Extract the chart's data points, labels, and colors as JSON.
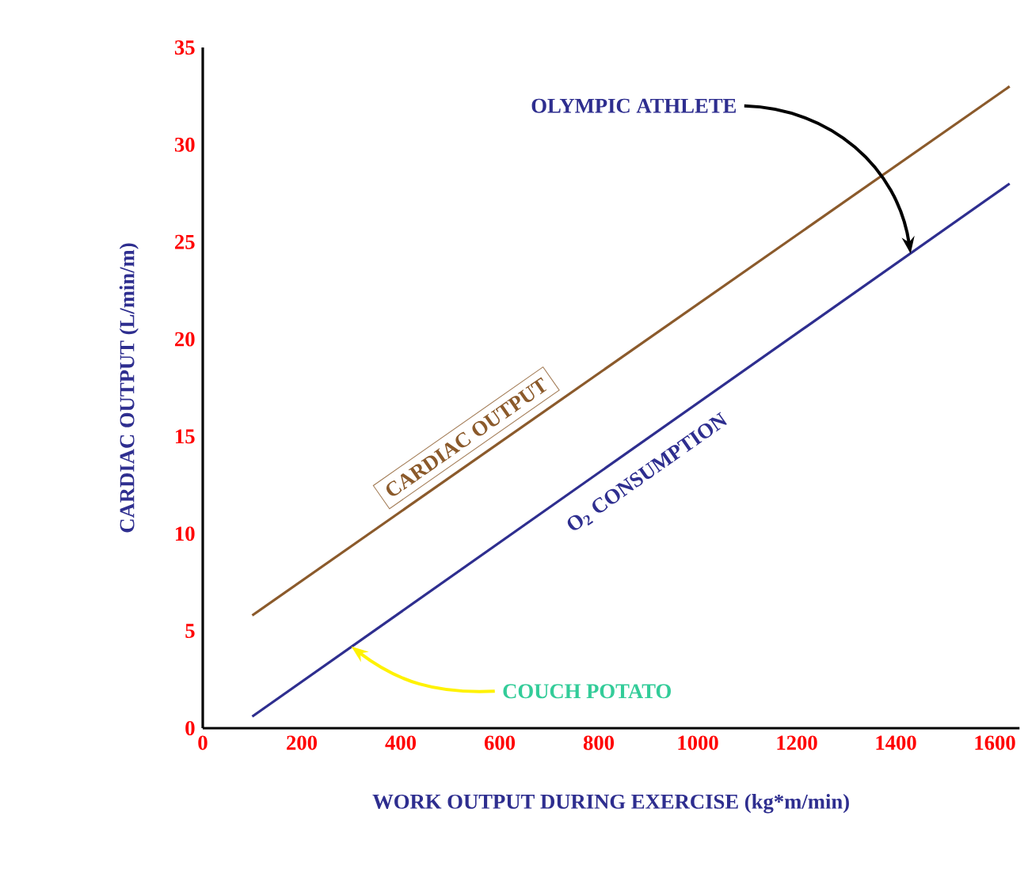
{
  "chart_data": {
    "type": "line",
    "xlabel": "WORK OUTPUT DURING EXERCISE (kg*m/min)",
    "ylabel": "CARDIAC OUTPUT (L/min/m)",
    "xlim": [
      0,
      1650
    ],
    "ylim": [
      0,
      35
    ],
    "xticks": [
      0,
      200,
      400,
      600,
      800,
      1000,
      1200,
      1400,
      1600
    ],
    "yticks": [
      0,
      5,
      10,
      15,
      20,
      25,
      30,
      35
    ],
    "grid": false,
    "legend": false,
    "x": [
      100,
      1630
    ],
    "series": [
      {
        "name": "CARDIAC OUTPUT",
        "color": "#8b5a2b",
        "values": [
          5.8,
          33
        ]
      },
      {
        "name": "O$_{2}$ CONSUMPTION",
        "color": "#2e2e8f",
        "values": [
          0.6,
          28
        ]
      }
    ],
    "annotations": [
      {
        "text": "OLYMPIC ATHLETE",
        "x": 1430,
        "y": 24.4
      },
      {
        "text": "COUCH POTATO",
        "x": 300,
        "y": 4.2
      }
    ]
  }
}
